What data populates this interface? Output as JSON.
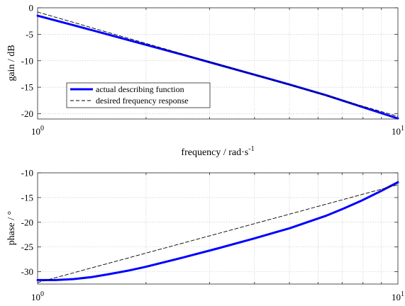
{
  "colors": {
    "actual": "#0000ff",
    "desired": "#000000"
  },
  "chart_data": [
    {
      "type": "line",
      "xscale": "log",
      "xlim": [
        1,
        10
      ],
      "ylim": [
        -21,
        0
      ],
      "xlabel": "frequency / rad·s",
      "xlabel_superscript": "-1",
      "ylabel": "gain / dB",
      "xticks": [
        {
          "base": "10",
          "exp": "0"
        },
        {
          "base": "10",
          "exp": "1"
        }
      ],
      "yticks": [
        0,
        -5,
        -10,
        -15,
        -20
      ],
      "grid": true,
      "legend_position": "lower-left",
      "series": [
        {
          "name": "actual describing function",
          "style": "solid-thick",
          "x": [
            1,
            1.26,
            1.58,
            2.0,
            2.51,
            3.16,
            3.98,
            5.01,
            6.31,
            7.94,
            10
          ],
          "y": [
            -1.5,
            -3.3,
            -5.1,
            -7.0,
            -8.8,
            -10.7,
            -12.6,
            -14.5,
            -16.5,
            -18.7,
            -20.9
          ]
        },
        {
          "name": "desired frequency response",
          "style": "dashed-thin",
          "x": [
            1,
            10
          ],
          "y": [
            -0.8,
            -20.5
          ]
        }
      ]
    },
    {
      "type": "line",
      "xscale": "log",
      "xlim": [
        1,
        10
      ],
      "ylim": [
        -32.5,
        -10
      ],
      "xlabel": "",
      "ylabel": "phase / °",
      "xticks": [
        {
          "base": "10",
          "exp": "0"
        },
        {
          "base": "10",
          "exp": "1"
        }
      ],
      "yticks": [
        -10,
        -15,
        -20,
        -25,
        -30
      ],
      "grid": true,
      "series": [
        {
          "style": "solid-thick",
          "x": [
            1,
            1.12,
            1.26,
            1.41,
            1.58,
            1.78,
            2.0,
            2.51,
            3.16,
            3.98,
            5.01,
            6.31,
            7.08,
            7.94,
            8.91,
            10
          ],
          "y": [
            -31.7,
            -31.7,
            -31.5,
            -31.1,
            -30.5,
            -29.8,
            -29.0,
            -27.2,
            -25.3,
            -23.3,
            -21.2,
            -18.7,
            -17.2,
            -15.6,
            -13.8,
            -11.9
          ]
        },
        {
          "style": "dashed-thin",
          "x": [
            1,
            10
          ],
          "y": [
            -32.2,
            -12.4
          ]
        }
      ]
    }
  ]
}
